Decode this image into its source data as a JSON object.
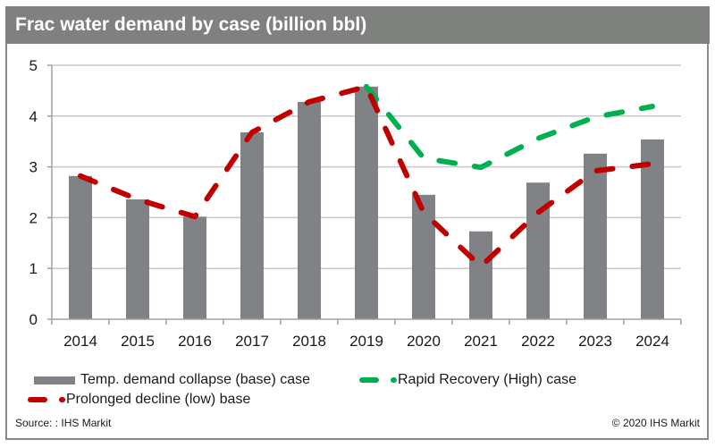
{
  "header": {
    "title": "Frac water demand by case (billion bbl)"
  },
  "footer": {
    "source": "Source: : IHS Markit",
    "copyright": "© 2020 IHS Markit"
  },
  "colors": {
    "title_bg": "#7f817f",
    "bar": "#808285",
    "low": "#c00000",
    "high": "#00b050",
    "grid": "#c8c8c8",
    "axis": "#a0a0a0"
  },
  "chart_data": {
    "type": "bar",
    "title": "Frac water demand by case (billion bbl)",
    "xlabel": "",
    "ylabel": "",
    "ylim": [
      0,
      5
    ],
    "yticks": [
      "0",
      "1",
      "2",
      "3",
      "4",
      "5"
    ],
    "grid": true,
    "legend_position": "bottom",
    "categories": [
      "2014",
      "2015",
      "2016",
      "2017",
      "2018",
      "2019",
      "2020",
      "2021",
      "2022",
      "2023",
      "2024"
    ],
    "series": [
      {
        "name": "Temp. demand collapse (base) case",
        "type": "bar",
        "values": [
          2.82,
          2.36,
          2.02,
          3.68,
          4.28,
          4.58,
          2.45,
          1.73,
          2.69,
          3.26,
          3.54
        ]
      },
      {
        "name": "Rapid Recovery (High) case",
        "type": "line",
        "style": "dashed",
        "values": [
          null,
          null,
          null,
          null,
          null,
          4.58,
          3.17,
          2.99,
          3.56,
          3.98,
          4.19
        ]
      },
      {
        "name": "Prolonged decline (low) base",
        "type": "line",
        "style": "dashed",
        "values": [
          2.82,
          2.36,
          2.02,
          3.68,
          4.28,
          4.58,
          2.1,
          1.04,
          2.1,
          2.92,
          3.06
        ]
      }
    ]
  }
}
